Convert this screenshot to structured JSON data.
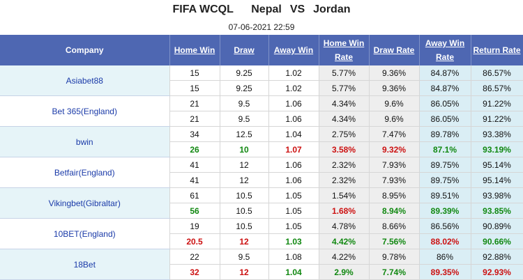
{
  "header": {
    "competition": "FIFA WCQL",
    "home_team": "Nepal",
    "vs": "VS",
    "away_team": "Jordan",
    "datetime": "07-06-2021 22:59"
  },
  "columns": [
    "Company",
    "Home Win",
    "Draw",
    "Away Win",
    "Home Win Rate",
    "Draw Rate",
    "Away Win Rate",
    "Return Rate"
  ],
  "bookmakers": [
    {
      "company": "Asiabet88",
      "rows": [
        {
          "home": "15",
          "draw": "9.25",
          "away": "1.02",
          "home_rate": "5.77%",
          "draw_rate": "9.36%",
          "away_rate": "84.87%",
          "return_rate": "86.57%",
          "colors": [
            "",
            "",
            "",
            "",
            "",
            "",
            ""
          ]
        },
        {
          "home": "15",
          "draw": "9.25",
          "away": "1.02",
          "home_rate": "5.77%",
          "draw_rate": "9.36%",
          "away_rate": "84.87%",
          "return_rate": "86.57%",
          "colors": [
            "",
            "",
            "",
            "",
            "",
            "",
            ""
          ]
        }
      ]
    },
    {
      "company": "Bet 365(England)",
      "rows": [
        {
          "home": "21",
          "draw": "9.5",
          "away": "1.06",
          "home_rate": "4.34%",
          "draw_rate": "9.6%",
          "away_rate": "86.05%",
          "return_rate": "91.22%",
          "colors": [
            "",
            "",
            "",
            "",
            "",
            "",
            ""
          ]
        },
        {
          "home": "21",
          "draw": "9.5",
          "away": "1.06",
          "home_rate": "4.34%",
          "draw_rate": "9.6%",
          "away_rate": "86.05%",
          "return_rate": "91.22%",
          "colors": [
            "",
            "",
            "",
            "",
            "",
            "",
            ""
          ]
        }
      ]
    },
    {
      "company": "bwin",
      "rows": [
        {
          "home": "34",
          "draw": "12.5",
          "away": "1.04",
          "home_rate": "2.75%",
          "draw_rate": "7.47%",
          "away_rate": "89.78%",
          "return_rate": "93.38%",
          "colors": [
            "",
            "",
            "",
            "",
            "",
            "",
            ""
          ]
        },
        {
          "home": "26",
          "draw": "10",
          "away": "1.07",
          "home_rate": "3.58%",
          "draw_rate": "9.32%",
          "away_rate": "87.1%",
          "return_rate": "93.19%",
          "colors": [
            "green",
            "green",
            "red",
            "red",
            "red",
            "green",
            "green"
          ]
        }
      ]
    },
    {
      "company": "Betfair(England)",
      "rows": [
        {
          "home": "41",
          "draw": "12",
          "away": "1.06",
          "home_rate": "2.32%",
          "draw_rate": "7.93%",
          "away_rate": "89.75%",
          "return_rate": "95.14%",
          "colors": [
            "",
            "",
            "",
            "",
            "",
            "",
            ""
          ]
        },
        {
          "home": "41",
          "draw": "12",
          "away": "1.06",
          "home_rate": "2.32%",
          "draw_rate": "7.93%",
          "away_rate": "89.75%",
          "return_rate": "95.14%",
          "colors": [
            "",
            "",
            "",
            "",
            "",
            "",
            ""
          ]
        }
      ]
    },
    {
      "company": "Vikingbet(Gibraltar)",
      "rows": [
        {
          "home": "61",
          "draw": "10.5",
          "away": "1.05",
          "home_rate": "1.54%",
          "draw_rate": "8.95%",
          "away_rate": "89.51%",
          "return_rate": "93.98%",
          "colors": [
            "",
            "",
            "",
            "",
            "",
            "",
            ""
          ]
        },
        {
          "home": "56",
          "draw": "10.5",
          "away": "1.05",
          "home_rate": "1.68%",
          "draw_rate": "8.94%",
          "away_rate": "89.39%",
          "return_rate": "93.85%",
          "colors": [
            "green",
            "",
            "",
            "red",
            "green",
            "green",
            "green"
          ]
        }
      ]
    },
    {
      "company": "10BET(England)",
      "rows": [
        {
          "home": "19",
          "draw": "10.5",
          "away": "1.05",
          "home_rate": "4.78%",
          "draw_rate": "8.66%",
          "away_rate": "86.56%",
          "return_rate": "90.89%",
          "colors": [
            "",
            "",
            "",
            "",
            "",
            "",
            ""
          ]
        },
        {
          "home": "20.5",
          "draw": "12",
          "away": "1.03",
          "home_rate": "4.42%",
          "draw_rate": "7.56%",
          "away_rate": "88.02%",
          "return_rate": "90.66%",
          "colors": [
            "red",
            "red",
            "green",
            "green",
            "green",
            "red",
            "green"
          ]
        }
      ]
    },
    {
      "company": "18Bet",
      "rows": [
        {
          "home": "22",
          "draw": "9.5",
          "away": "1.08",
          "home_rate": "4.22%",
          "draw_rate": "9.78%",
          "away_rate": "86%",
          "return_rate": "92.88%",
          "colors": [
            "",
            "",
            "",
            "",
            "",
            "",
            ""
          ]
        },
        {
          "home": "32",
          "draw": "12",
          "away": "1.04",
          "home_rate": "2.9%",
          "draw_rate": "7.74%",
          "away_rate": "89.35%",
          "return_rate": "92.93%",
          "colors": [
            "red",
            "red",
            "green",
            "green",
            "green",
            "red",
            "red"
          ]
        }
      ]
    }
  ],
  "style": {
    "header_bg": "#4e67b2",
    "up_color": "#cc1111",
    "down_color": "#118811",
    "company_link_color": "#1a3aa8"
  }
}
